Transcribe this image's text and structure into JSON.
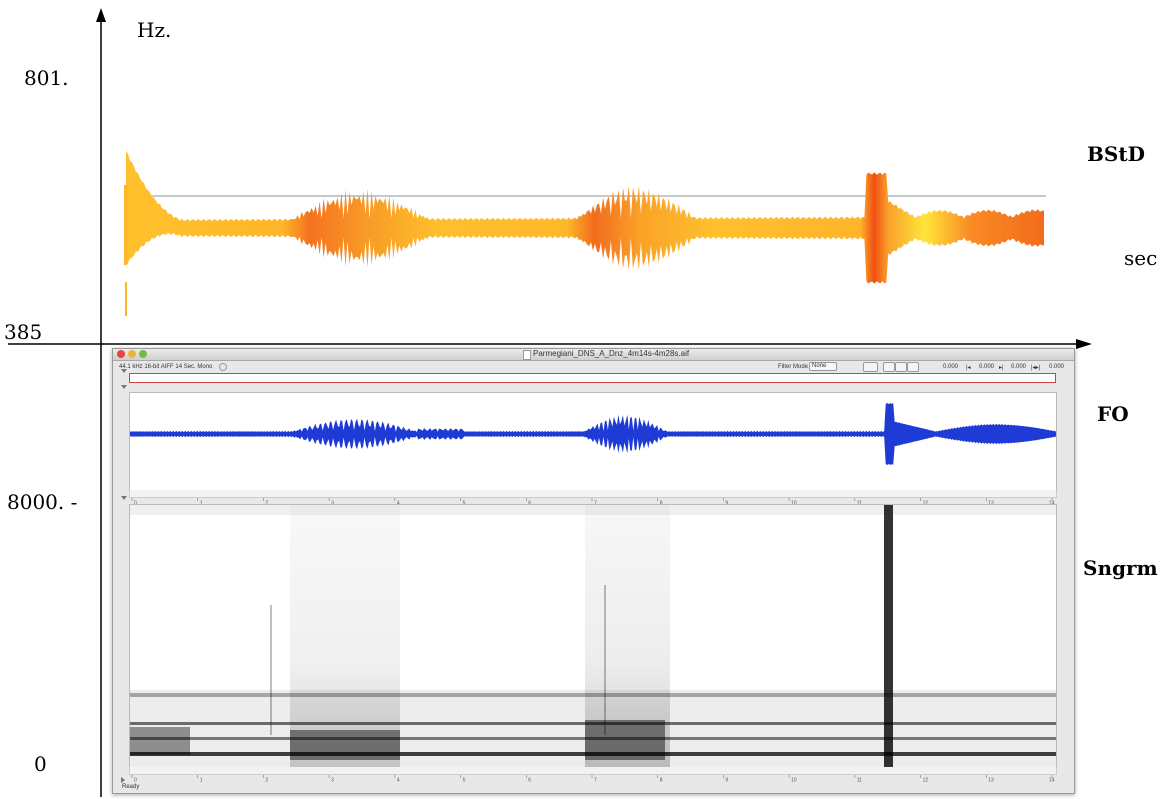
{
  "top_plot": {
    "y_unit": "Hz.",
    "y_max": "801.",
    "y_min": "385",
    "x_unit": "sec",
    "label": "BStD"
  },
  "waveform": {
    "label": "FO"
  },
  "spectrogram": {
    "label": "Sngrm",
    "y_max": "8000. -",
    "y_min": "0"
  },
  "window": {
    "title": "Parmegiani_DNS_A_Dnz_4m14s-4m28s.aif",
    "info": "44.1 kHz  16-bit AIFF   14 Sec.  Mono",
    "filter_mode_label": "Filter Mode",
    "filter_mode_value": "None",
    "time_readouts": [
      "0.000",
      "0.000",
      "0.000",
      "0.000"
    ],
    "status": "Ready",
    "ruler_ticks": [
      "1",
      "2",
      "3",
      "4",
      "5",
      "6",
      "7",
      "8",
      "9",
      "10",
      "11",
      "12",
      "13"
    ],
    "ruler_start": "0",
    "ruler_end": "14"
  },
  "colors": {
    "waveform": "#1f3bd6",
    "pitch_light": "#ffc12b",
    "pitch_dark": "#f25a14",
    "axis": "#000000"
  }
}
